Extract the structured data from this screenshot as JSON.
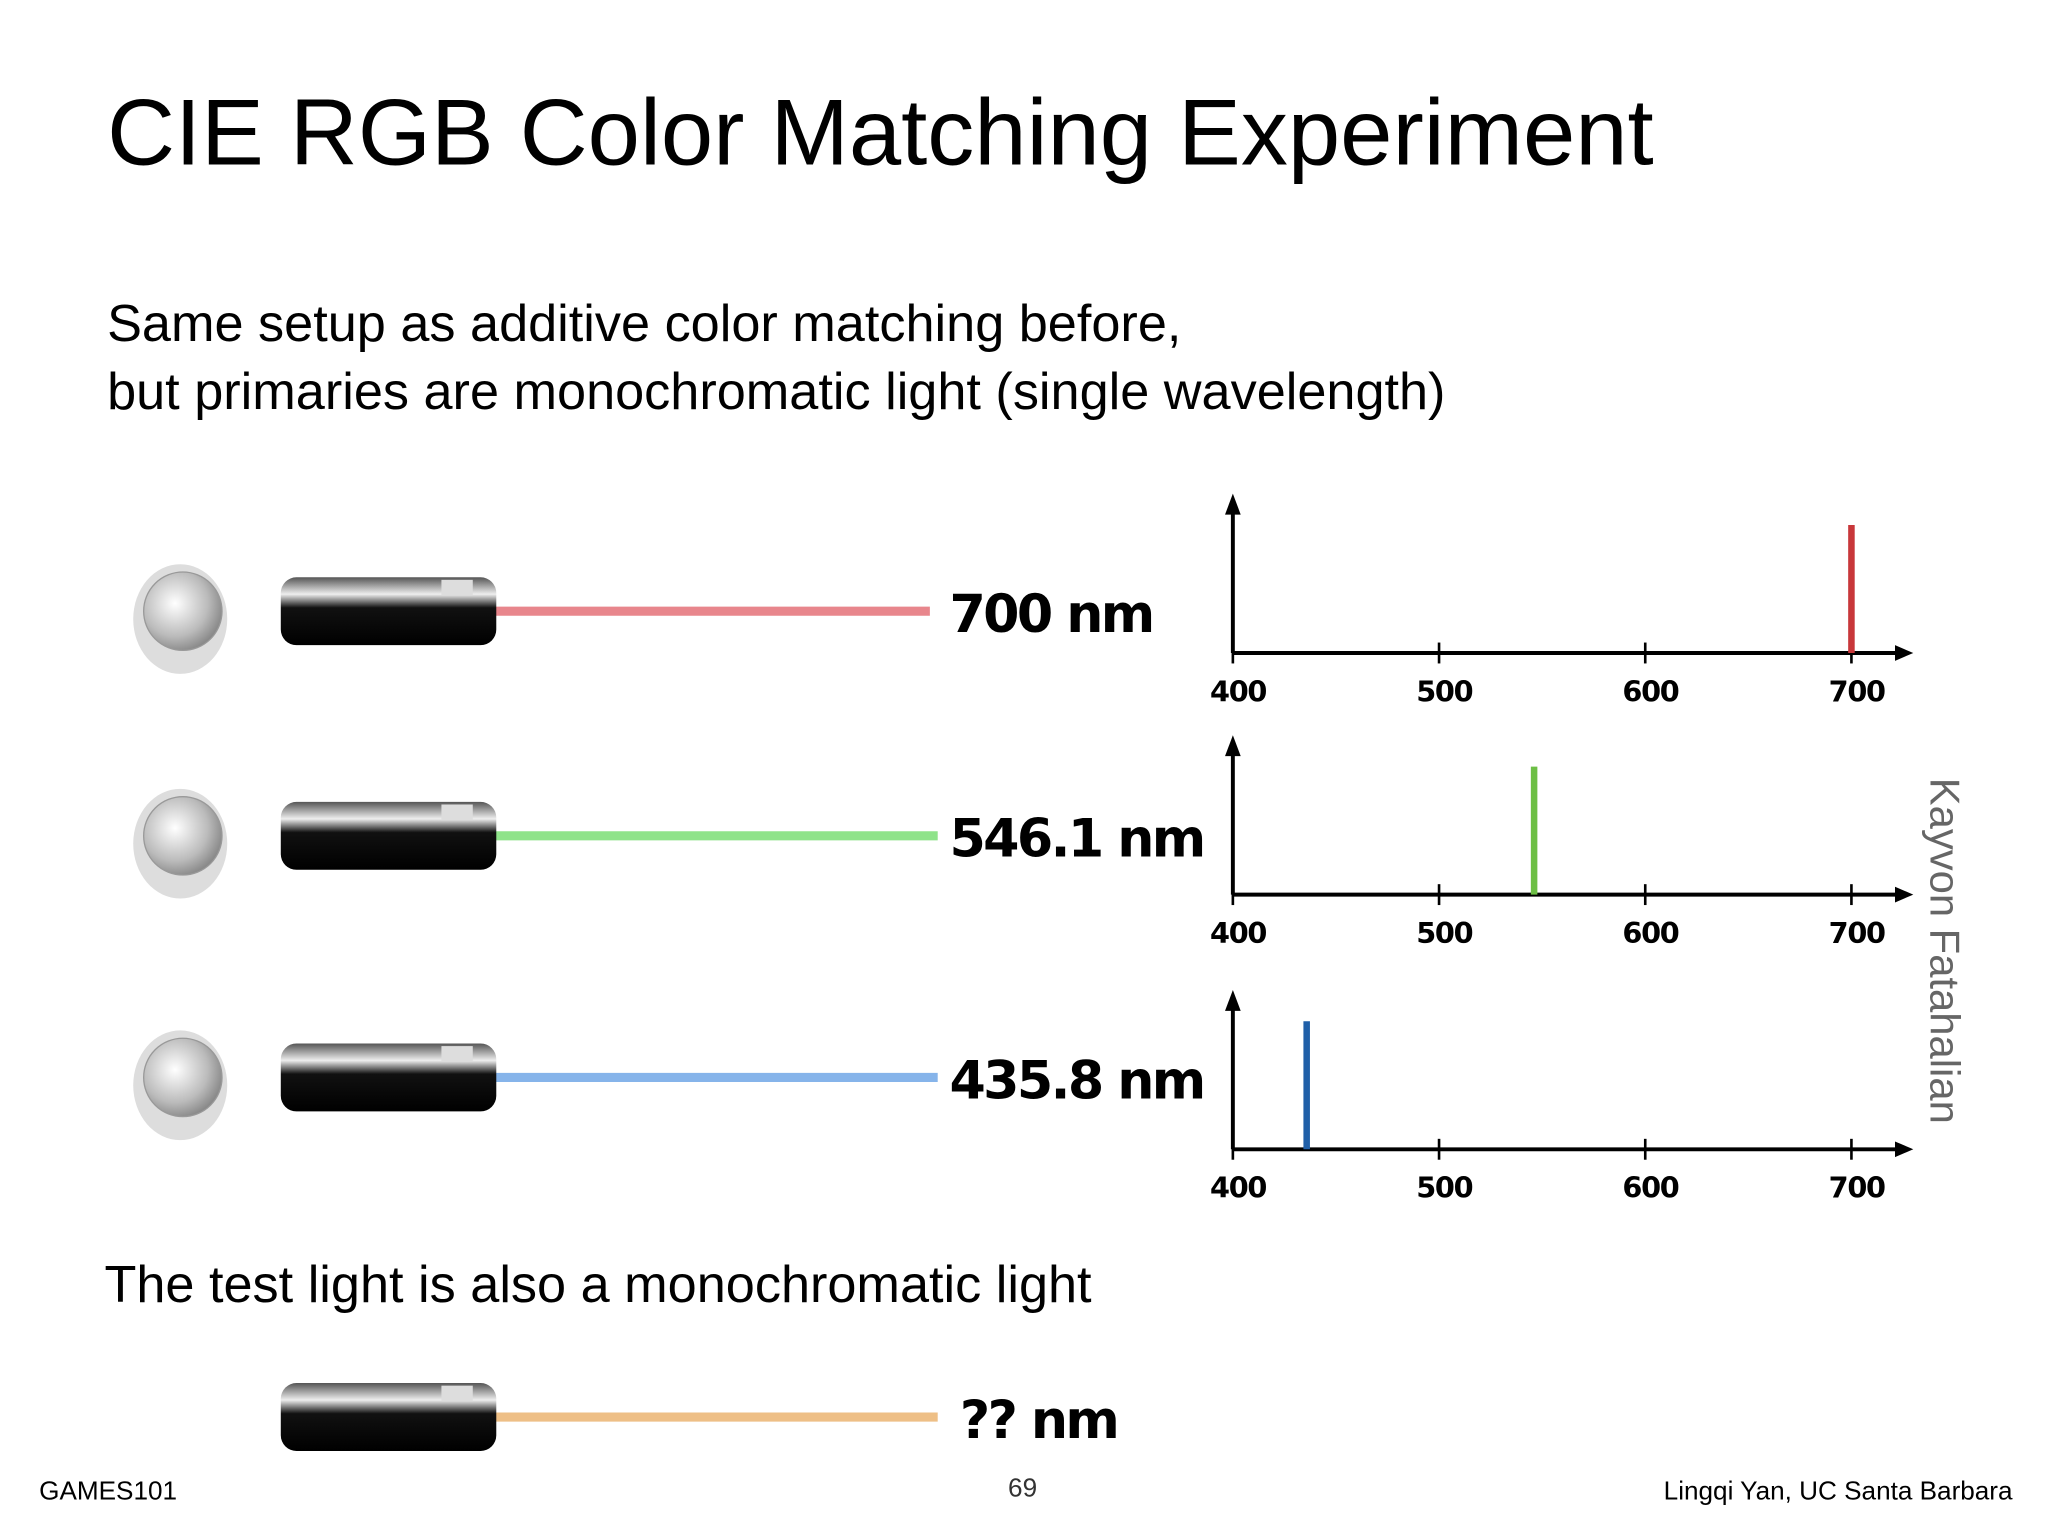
{
  "title": "CIE RGB Color Matching Experiment",
  "subtitle": [
    "Same setup as additive color matching before,",
    "but primaries are monochromatic light (single wavelength)"
  ],
  "lasers": [
    "700 nm",
    "546.1 nm",
    "435.8 nm"
  ],
  "test_text": "The test light is also a monochromatic light",
  "test_laser": "?? nm",
  "credit": "Kayvon Fatahalian",
  "footer": {
    "left": "GAMES101",
    "page": "69",
    "right": "Lingqi Yan, UC Santa Barbara"
  },
  "chart_data": [
    {
      "type": "spike",
      "x": [
        700
      ],
      "color": "#c8373a",
      "xlim": [
        400,
        730
      ],
      "xticks": [
        400,
        500,
        600,
        700
      ]
    },
    {
      "type": "spike",
      "x": [
        546.1
      ],
      "color": "#6dbf45",
      "xlim": [
        400,
        730
      ],
      "xticks": [
        400,
        500,
        600,
        700
      ]
    },
    {
      "type": "spike",
      "x": [
        435.8
      ],
      "color": "#1f5fa8",
      "xlim": [
        400,
        730
      ],
      "xticks": [
        400,
        500,
        600,
        700
      ]
    }
  ]
}
